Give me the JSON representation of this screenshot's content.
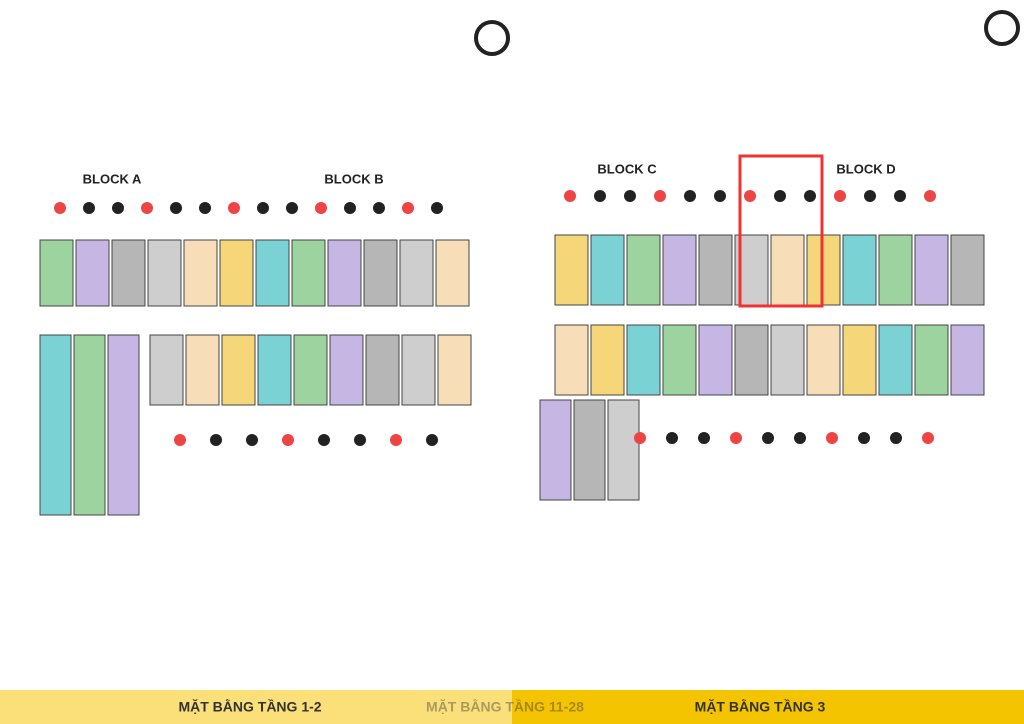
{
  "blocks": [
    {
      "label": "BLOCK A"
    },
    {
      "label": "BLOCK B"
    },
    {
      "label": "BLOCK C"
    },
    {
      "label": "BLOCK D"
    }
  ],
  "footer": {
    "left": "MẶT BẰNG TẦNG 1-2",
    "center": "MẶT BẰNG TẦNG 11-28",
    "right": "MẶT BẰNG TẦNG 3"
  }
}
